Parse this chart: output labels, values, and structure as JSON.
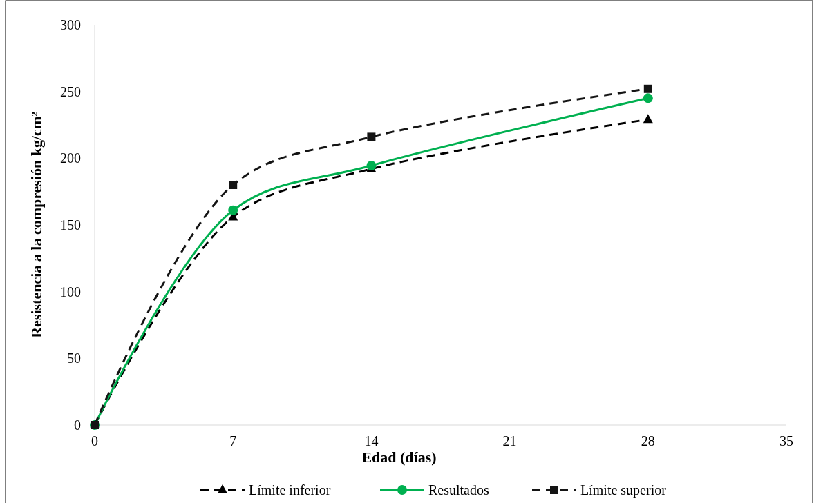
{
  "chart_data": {
    "type": "line",
    "xlabel": "Edad (días)",
    "ylabel": "Resistencia a la compresión kg/cm²",
    "x": [
      0,
      7,
      14,
      28
    ],
    "xlim": [
      0,
      35
    ],
    "xticks": [
      0,
      7,
      14,
      21,
      28,
      35
    ],
    "ylim": [
      0,
      300
    ],
    "yticks": [
      0,
      50,
      100,
      150,
      200,
      250,
      300
    ],
    "grid": false,
    "legend": "bottom",
    "series": [
      {
        "name": "Límite inferior",
        "color": "#000000",
        "marker": "triangle",
        "line_style": "dashed",
        "values": [
          0,
          156,
          192,
          229
        ]
      },
      {
        "name": "Resultados",
        "color": "#00b050",
        "marker": "circle",
        "line_style": "solid",
        "values": [
          0,
          161,
          194.5,
          245
        ]
      },
      {
        "name": "Límite superior",
        "color": "#141414",
        "marker": "square",
        "line_style": "dashed",
        "values": [
          0,
          180,
          216,
          252
        ]
      }
    ]
  }
}
